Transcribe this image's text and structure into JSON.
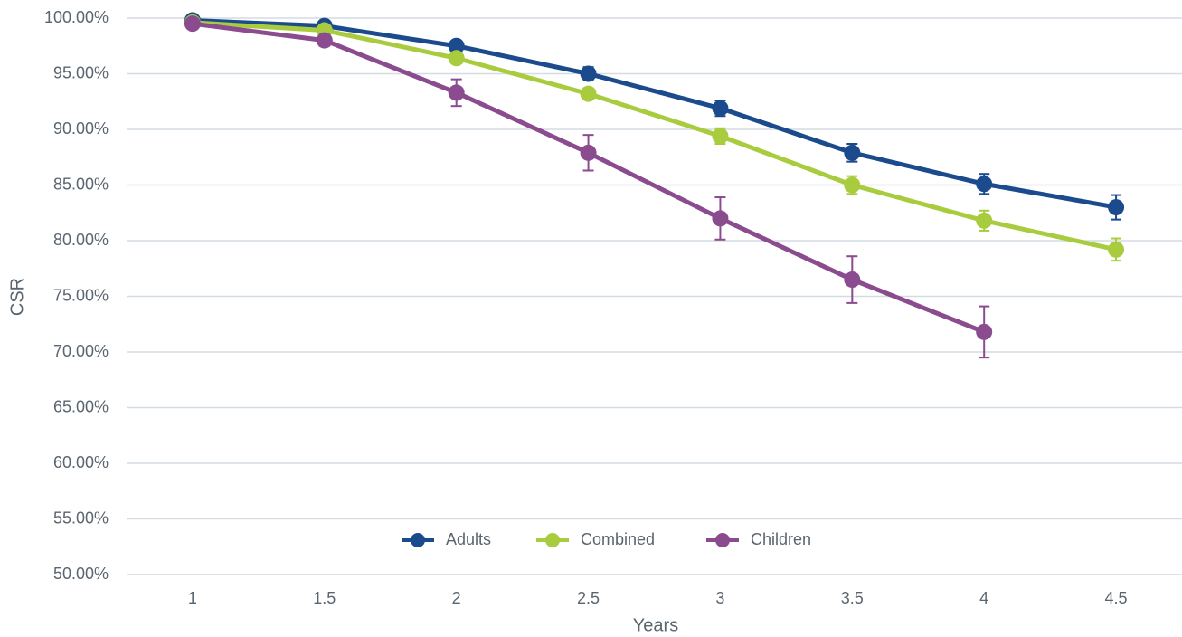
{
  "chart_data": {
    "type": "line",
    "x_label": "Years",
    "y_label": "CSR",
    "categories": [
      "1",
      "1.5",
      "2",
      "2.5",
      "3",
      "3.5",
      "4",
      "4.5"
    ],
    "series": [
      {
        "name": "Adults",
        "color": "#1b4b8d",
        "values": [
          99.8,
          99.3,
          97.5,
          95.0,
          91.9,
          87.9,
          85.1,
          83.0
        ],
        "errors": [
          0.3,
          0.3,
          0.4,
          0.6,
          0.7,
          0.8,
          0.9,
          1.1
        ]
      },
      {
        "name": "Combined",
        "color": "#a9cc3e",
        "values": [
          99.6,
          98.9,
          96.4,
          93.2,
          89.4,
          85.0,
          81.8,
          79.2
        ],
        "errors": [
          0.2,
          0.3,
          0.4,
          0.5,
          0.7,
          0.8,
          0.9,
          1.0
        ]
      },
      {
        "name": "Children",
        "color": "#8a4b8f",
        "values": [
          99.5,
          98.0,
          93.3,
          87.9,
          82.0,
          76.5,
          71.8,
          null
        ],
        "errors": [
          0.3,
          0.5,
          1.2,
          1.6,
          1.9,
          2.1,
          2.3,
          null
        ]
      }
    ],
    "ylim": [
      50,
      100
    ],
    "yticks": [
      {
        "value": 50,
        "label": "50.00%"
      },
      {
        "value": 55,
        "label": "55.00%"
      },
      {
        "value": 60,
        "label": "60.00%"
      },
      {
        "value": 65,
        "label": "65.00%"
      },
      {
        "value": 70,
        "label": "70.00%"
      },
      {
        "value": 75,
        "label": "75.00%"
      },
      {
        "value": 80,
        "label": "80.00%"
      },
      {
        "value": 85,
        "label": "85.00%"
      },
      {
        "value": 90,
        "label": "90.00%"
      },
      {
        "value": 95,
        "label": "95.00%"
      },
      {
        "value": 100,
        "label": "100.00%"
      }
    ],
    "grid": true,
    "legend": "bottom"
  }
}
